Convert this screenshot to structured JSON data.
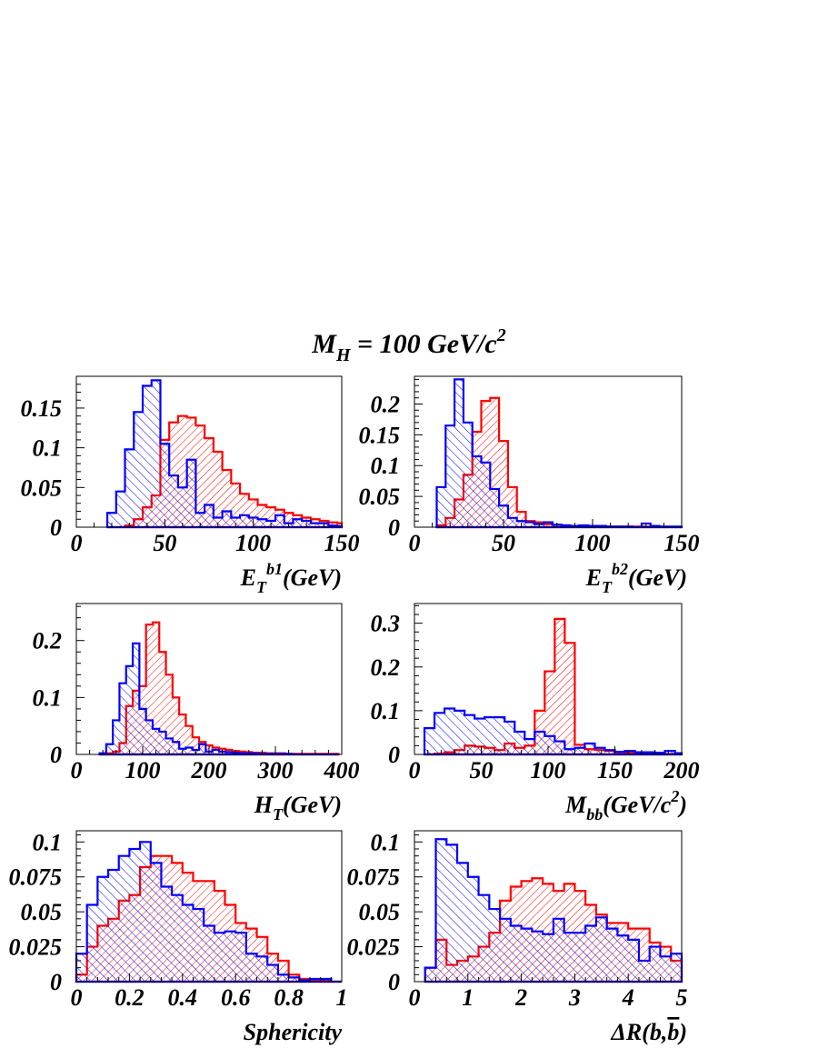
{
  "page_title": "M_H = 100 GeV/c^2",
  "title_parts": {
    "main": "M",
    "sub": "H",
    "eq": " = 100 GeV/c",
    "sup": "2"
  },
  "colors": {
    "signal": "#ff0000",
    "background": "#0000ff",
    "frame": "#000000"
  },
  "chart_data": [
    {
      "type": "histogram",
      "xlabel": {
        "main": "E",
        "sub": "T",
        "sup": "b1",
        "tail": "(GeV)"
      },
      "xlim": [
        0,
        150
      ],
      "ylim": [
        0,
        0.19
      ],
      "xticks": [
        0,
        50,
        100,
        150
      ],
      "xtick_labels": [
        "0",
        "50",
        "100",
        "150"
      ],
      "yticks": [
        0,
        0.05,
        0.1,
        0.15
      ],
      "ytick_labels": [
        "0",
        "0.05",
        "0.1",
        "0.15"
      ],
      "bin_edges": [
        17.5,
        22.5,
        27.5,
        32.5,
        37.5,
        42.5,
        47.5,
        52.5,
        57.5,
        62.5,
        67.5,
        72.5,
        77.5,
        82.5,
        87.5,
        92.5,
        97.5,
        102.5,
        107.5,
        112.5,
        117.5,
        122.5,
        127.5,
        132.5,
        137.5,
        142.5,
        147.5,
        150
      ],
      "series": [
        {
          "values": [
            0.018,
            0.045,
            0.098,
            0.145,
            0.178,
            0.185,
            0.105,
            0.065,
            0.05,
            0.085,
            0.018,
            0.028,
            0.012,
            0.02,
            0.012,
            0.015,
            0.012,
            0.01,
            0.008,
            0.015,
            0.005,
            0.01,
            0.008,
            0.005,
            0.005,
            0.002,
            0.001
          ]
        },
        {
          "values": [
            0,
            0.0,
            0.002,
            0.01,
            0.025,
            0.04,
            0.11,
            0.132,
            0.14,
            0.138,
            0.128,
            0.112,
            0.095,
            0.072,
            0.055,
            0.042,
            0.035,
            0.028,
            0.025,
            0.022,
            0.018,
            0.015,
            0.012,
            0.01,
            0.008,
            0.006,
            0.005
          ]
        }
      ]
    },
    {
      "type": "histogram",
      "xlabel": {
        "main": "E",
        "sub": "T",
        "sup": "b2",
        "tail": "(GeV)"
      },
      "xlim": [
        0,
        150
      ],
      "ylim": [
        0,
        0.245
      ],
      "xticks": [
        0,
        50,
        100,
        150
      ],
      "xtick_labels": [
        "0",
        "50",
        "100",
        "150"
      ],
      "yticks": [
        0,
        0.05,
        0.1,
        0.15,
        0.2
      ],
      "ytick_labels": [
        "0",
        "0.05",
        "0.1",
        "0.15",
        "0.2"
      ],
      "bin_edges": [
        12.5,
        17.5,
        22.5,
        27.5,
        32.5,
        37.5,
        42.5,
        47.5,
        52.5,
        57.5,
        62.5,
        67.5,
        72.5,
        77.5,
        82.5,
        87.5,
        92.5,
        97.5,
        102.5,
        107.5,
        112.5,
        117.5,
        122.5,
        127.5,
        132.5,
        137.5,
        142.5,
        147.5,
        150
      ],
      "series": [
        {
          "values": [
            0.065,
            0.165,
            0.24,
            0.17,
            0.115,
            0.105,
            0.062,
            0.035,
            0.015,
            0.01,
            0.008,
            0.005,
            0.008,
            0.004,
            0.003,
            0.002,
            0.003,
            0.002,
            0.002,
            0.001,
            0.001,
            0.001,
            0.0,
            0.006,
            0.002,
            0.001,
            0.001,
            0.001
          ]
        },
        {
          "values": [
            0.003,
            0.015,
            0.045,
            0.085,
            0.155,
            0.205,
            0.21,
            0.14,
            0.065,
            0.025,
            0.01,
            0.008,
            0.005,
            0.004,
            0.003,
            0.002,
            0.002,
            0.002,
            0.001,
            0.001,
            0.001,
            0.001,
            0.001,
            0.001,
            0.0,
            0.0,
            0.0,
            0.0
          ]
        }
      ]
    },
    {
      "type": "histogram",
      "xlabel": {
        "main": "H",
        "sub": "T",
        "sup": "",
        "tail": "(GeV)"
      },
      "xlim": [
        0,
        400
      ],
      "ylim": [
        0,
        0.265
      ],
      "xticks": [
        0,
        100,
        200,
        300,
        400
      ],
      "xtick_labels": [
        "0",
        "100",
        "200",
        "300",
        "400"
      ],
      "yticks": [
        0,
        0.1,
        0.2
      ],
      "ytick_labels": [
        "0",
        "0.1",
        "0.2"
      ],
      "bin_edges": [
        35,
        45,
        55,
        65,
        75,
        85,
        95,
        105,
        115,
        125,
        135,
        145,
        155,
        165,
        175,
        185,
        195,
        205,
        215,
        225,
        235,
        245,
        255,
        265,
        275,
        285,
        295,
        305,
        315,
        325,
        335,
        345,
        355,
        365,
        375,
        385,
        395
      ],
      "series": [
        {
          "values": [
            0.002,
            0.018,
            0.06,
            0.125,
            0.155,
            0.195,
            0.08,
            0.06,
            0.045,
            0.04,
            0.028,
            0.022,
            0.01,
            0.012,
            0.008,
            0.018,
            0.005,
            0.008,
            0.005,
            0.004,
            0.003,
            0.002,
            0.002,
            0.002,
            0.001,
            0.001,
            0.001,
            0.001,
            0.001,
            0.0,
            0.0,
            0.0,
            0.0,
            0.0,
            0.0,
            0.0
          ]
        },
        {
          "values": [
            0.0,
            0.002,
            0.005,
            0.02,
            0.085,
            0.112,
            0.12,
            0.228,
            0.232,
            0.18,
            0.14,
            0.1,
            0.07,
            0.05,
            0.03,
            0.022,
            0.016,
            0.012,
            0.01,
            0.008,
            0.006,
            0.005,
            0.004,
            0.003,
            0.003,
            0.002,
            0.002,
            0.002,
            0.001,
            0.001,
            0.001,
            0.001,
            0.001,
            0.001,
            0.001,
            0.001
          ]
        }
      ]
    },
    {
      "type": "histogram",
      "xlabel": {
        "main": "M",
        "sub": "bb",
        "sup": "",
        "tail": "(GeV/c",
        "tail_sup": "2",
        "tail_end": ")"
      },
      "xlim": [
        0,
        200
      ],
      "ylim": [
        0,
        0.345
      ],
      "xticks": [
        0,
        50,
        100,
        150,
        200
      ],
      "xtick_labels": [
        "0",
        "50",
        "100",
        "150",
        "200"
      ],
      "yticks": [
        0,
        0.1,
        0.2,
        0.3
      ],
      "ytick_labels": [
        "0",
        "0.1",
        "0.2",
        "0.3"
      ],
      "bin_edges": [
        7.5,
        15,
        22.5,
        30,
        37.5,
        45,
        52.5,
        60,
        67.5,
        75,
        82.5,
        90,
        97.5,
        105,
        112.5,
        120,
        127.5,
        135,
        142.5,
        150,
        157.5,
        165,
        172.5,
        180,
        187.5,
        195,
        200
      ],
      "series": [
        {
          "values": [
            0.06,
            0.095,
            0.105,
            0.1,
            0.09,
            0.082,
            0.085,
            0.085,
            0.075,
            0.052,
            0.035,
            0.052,
            0.042,
            0.03,
            0.012,
            0.015,
            0.025,
            0.015,
            0.01,
            0.006,
            0.008,
            0.005,
            0.005,
            0.004,
            0.008,
            0.003
          ]
        },
        {
          "values": [
            0.0,
            0.002,
            0.005,
            0.01,
            0.02,
            0.018,
            0.015,
            0.01,
            0.025,
            0.015,
            0.02,
            0.1,
            0.19,
            0.31,
            0.255,
            0.022,
            0.012,
            0.01,
            0.008,
            0.005,
            0.004,
            0.003,
            0.002,
            0.002,
            0.001,
            0.001
          ]
        }
      ]
    },
    {
      "type": "histogram",
      "xlabel": {
        "main": "Sphericity",
        "sub": "",
        "sup": "",
        "tail": ""
      },
      "xlim": [
        0,
        1
      ],
      "ylim": [
        0,
        0.108
      ],
      "xticks": [
        0,
        0.2,
        0.4,
        0.6,
        0.8,
        1
      ],
      "xtick_labels": [
        "0",
        "0.2",
        "0.4",
        "0.6",
        "0.8",
        "1"
      ],
      "yticks": [
        0,
        0.025,
        0.05,
        0.075,
        0.1
      ],
      "ytick_labels": [
        "0",
        "0.025",
        "0.05",
        "0.075",
        "0.1"
      ],
      "bin_edges": [
        0,
        0.04,
        0.08,
        0.12,
        0.16,
        0.2,
        0.24,
        0.28,
        0.32,
        0.36,
        0.4,
        0.44,
        0.48,
        0.52,
        0.56,
        0.6,
        0.64,
        0.68,
        0.72,
        0.76,
        0.8,
        0.84,
        0.88,
        0.92,
        0.96,
        1.0
      ],
      "series": [
        {
          "values": [
            0.02,
            0.055,
            0.075,
            0.08,
            0.09,
            0.095,
            0.1,
            0.085,
            0.068,
            0.062,
            0.055,
            0.052,
            0.04,
            0.035,
            0.036,
            0.035,
            0.02,
            0.018,
            0.012,
            0.005,
            0.003,
            0.001,
            0.002,
            0.002,
            0.0
          ]
        },
        {
          "values": [
            0.005,
            0.025,
            0.04,
            0.045,
            0.058,
            0.062,
            0.082,
            0.09,
            0.09,
            0.085,
            0.078,
            0.072,
            0.072,
            0.065,
            0.055,
            0.042,
            0.038,
            0.032,
            0.02,
            0.015,
            0.005,
            0.002,
            0.001,
            0.001,
            0.0
          ]
        }
      ]
    },
    {
      "type": "histogram",
      "xlabel": {
        "main": "ΔR(b,",
        "bbar": "b",
        "sub": "",
        "sup": "",
        "tail": ")"
      },
      "xlim": [
        0,
        5
      ],
      "ylim": [
        0,
        0.108
      ],
      "xticks": [
        0,
        1,
        2,
        3,
        4,
        5
      ],
      "xtick_labels": [
        "0",
        "1",
        "2",
        "3",
        "4",
        "5"
      ],
      "yticks": [
        0,
        0.025,
        0.05,
        0.075,
        0.1
      ],
      "ytick_labels": [
        "0",
        "0.025",
        "0.05",
        "0.075",
        "0.1"
      ],
      "bin_edges": [
        0.2,
        0.4,
        0.6,
        0.8,
        1.0,
        1.2,
        1.4,
        1.6,
        1.8,
        2.0,
        2.2,
        2.4,
        2.6,
        2.8,
        3.0,
        3.2,
        3.4,
        3.6,
        3.8,
        4.0,
        4.2,
        4.4,
        4.6,
        4.8,
        5.0
      ],
      "series": [
        {
          "values": [
            0.01,
            0.102,
            0.098,
            0.085,
            0.075,
            0.062,
            0.052,
            0.045,
            0.04,
            0.038,
            0.036,
            0.034,
            0.045,
            0.035,
            0.035,
            0.04,
            0.046,
            0.038,
            0.033,
            0.03,
            0.015,
            0.025,
            0.018,
            0.02
          ]
        },
        {
          "values": [
            0.01,
            0.03,
            0.012,
            0.015,
            0.018,
            0.025,
            0.035,
            0.058,
            0.068,
            0.072,
            0.074,
            0.07,
            0.065,
            0.07,
            0.065,
            0.055,
            0.048,
            0.042,
            0.042,
            0.038,
            0.038,
            0.028,
            0.025,
            0.015
          ]
        }
      ]
    }
  ]
}
